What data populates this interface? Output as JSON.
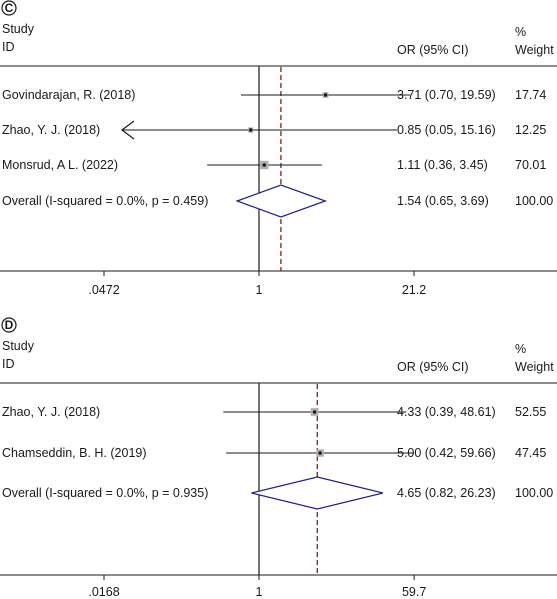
{
  "chart_data": [
    {
      "type": "forest",
      "panel_label": "C",
      "header": {
        "study": "Study",
        "id": "ID",
        "effect": "OR (95% CI)",
        "pct": "%",
        "weight": "Weight"
      },
      "scale": "log",
      "xlim": [
        0.0472,
        21.2
      ],
      "ticks": [
        {
          "value": 0.0472,
          "label": ".0472"
        },
        {
          "value": 1,
          "label": "1"
        },
        {
          "value": 21.2,
          "label": "21.2"
        }
      ],
      "null_value": 1,
      "studies": [
        {
          "label": "Govindarajan, R. (2018)",
          "or": 3.71,
          "lo": 0.7,
          "hi": 19.59,
          "ci_text": "3.71 (0.70, 19.59)",
          "weight": 17.74,
          "weight_text": "17.74",
          "clipped_low": false
        },
        {
          "label": "Zhao, Y. J. (2018)",
          "or": 0.85,
          "lo": 0.05,
          "hi": 15.16,
          "ci_text": "0.85 (0.05, 15.16)",
          "weight": 12.25,
          "weight_text": "12.25",
          "clipped_low": true
        },
        {
          "label": "Monsrud, A L. (2022)",
          "or": 1.11,
          "lo": 0.36,
          "hi": 3.45,
          "ci_text": "1.11 (0.36, 3.45)",
          "weight": 70.01,
          "weight_text": "70.01",
          "clipped_low": false
        }
      ],
      "overall": {
        "label": "Overall (I-squared = 0.0%, p = 0.459)",
        "or": 1.54,
        "lo": 0.65,
        "hi": 3.69,
        "ci_text": "1.54 (0.65, 3.69)",
        "weight_text": "100.00"
      },
      "colors": {
        "diamond": "#1f1f8c",
        "overall_line": "#8b1a1a",
        "box": "#b0b0b0"
      }
    },
    {
      "type": "forest",
      "panel_label": "D",
      "header": {
        "study": "Study",
        "id": "ID",
        "effect": "OR (95% CI)",
        "pct": "%",
        "weight": "Weight"
      },
      "scale": "log",
      "xlim": [
        0.0168,
        59.7
      ],
      "ticks": [
        {
          "value": 0.0168,
          "label": ".0168"
        },
        {
          "value": 1,
          "label": "1"
        },
        {
          "value": 59.7,
          "label": "59.7"
        }
      ],
      "null_value": 1,
      "studies": [
        {
          "label": "Zhao, Y. J. (2018)",
          "or": 4.33,
          "lo": 0.39,
          "hi": 48.61,
          "ci_text": "4.33 (0.39, 48.61)",
          "weight": 52.55,
          "weight_text": "52.55",
          "clipped_low": false
        },
        {
          "label": "Chamseddin, B. H. (2019)",
          "or": 5.0,
          "lo": 0.42,
          "hi": 59.66,
          "ci_text": "5.00 (0.42, 59.66)",
          "weight": 47.45,
          "weight_text": "47.45",
          "clipped_low": false
        }
      ],
      "overall": {
        "label": "Overall (I-squared = 0.0%, p = 0.935)",
        "or": 4.65,
        "lo": 0.82,
        "hi": 26.23,
        "ci_text": "4.65 (0.82, 26.23)",
        "weight_text": "100.00"
      },
      "colors": {
        "diamond": "#1f1f8c",
        "overall_line": "#8b1a1a",
        "box": "#b0b0b0"
      }
    }
  ]
}
